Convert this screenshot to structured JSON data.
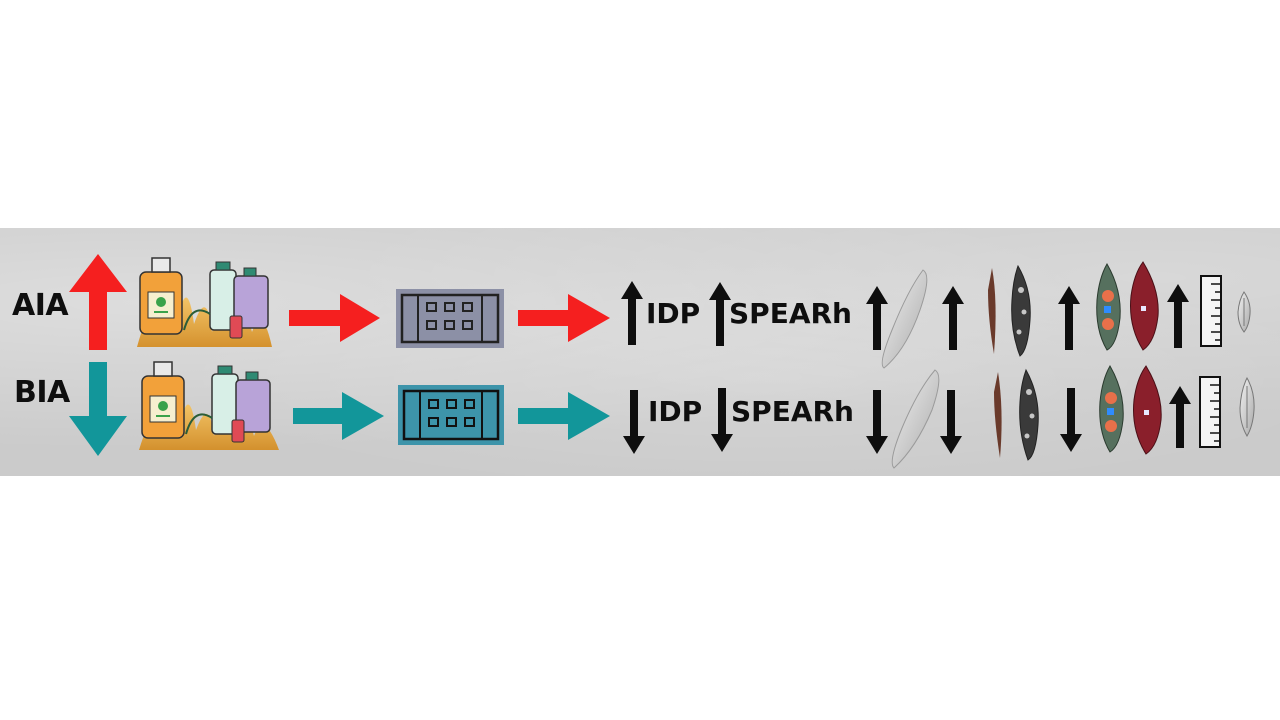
{
  "rows": {
    "aia": {
      "label": "AIA",
      "metric1": "IDP",
      "metric2": "SPEARh",
      "color": "#f51f1f"
    },
    "bia": {
      "label": "BIA",
      "metric1": "IDP",
      "metric2": "SPEARh",
      "color": "#12969a"
    }
  },
  "icons": {
    "inputs": "agrochemical-containers-icon",
    "device": "multiwell-plate-icon",
    "taxa": [
      "elongated-diatom-icon",
      "filamentous-taxon-icon",
      "pigmented-diatom-icon",
      "ruler-icon",
      "small-diatom-icon"
    ]
  }
}
